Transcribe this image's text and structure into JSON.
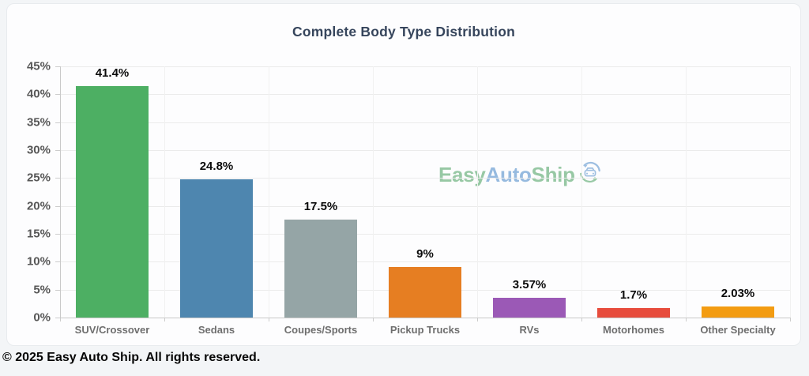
{
  "page": {
    "footer": "© 2025 Easy Auto Ship. All rights reserved."
  },
  "watermark": {
    "part1": "Easy",
    "part2": "Auto",
    "part3": "Ship",
    "icon": "car-sync-logo",
    "green": "rgba(88,168,108,0.62)",
    "blue": "rgba(96,150,206,0.65)"
  },
  "chart_data": {
    "type": "bar",
    "title": "Complete Body Type Distribution",
    "categories": [
      "SUV/Crossover",
      "Sedans",
      "Coupes/Sports",
      "Pickup Trucks",
      "RVs",
      "Motorhomes",
      "Other Specialty"
    ],
    "values": [
      41.4,
      24.8,
      17.5,
      9,
      3.57,
      1.7,
      2.03
    ],
    "value_labels": [
      "41.4%",
      "24.8%",
      "17.5%",
      "9%",
      "3.57%",
      "1.7%",
      "2.03%"
    ],
    "bar_colors": [
      "#4daf63",
      "#4e86af",
      "#95a5a6",
      "#e67e22",
      "#9b59b6",
      "#e74c3c",
      "#f39c12"
    ],
    "xlabel": "",
    "ylabel": "",
    "ylim": [
      0,
      45
    ],
    "yticks": [
      0,
      5,
      10,
      15,
      20,
      25,
      30,
      35,
      40,
      45
    ],
    "ytick_labels": [
      "0%",
      "5%",
      "10%",
      "15%",
      "20%",
      "25%",
      "30%",
      "35%",
      "40%",
      "45%"
    ],
    "grid": true,
    "legend": false
  }
}
